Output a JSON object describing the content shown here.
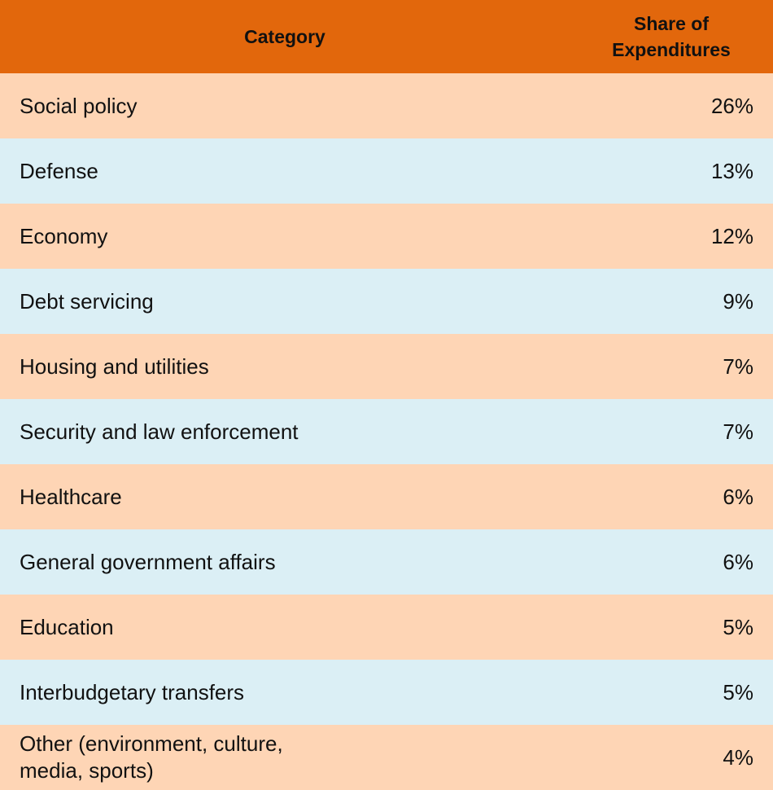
{
  "colors": {
    "header_bg": "#E2670C",
    "row_orange": "#FED5B5",
    "row_blue": "#DBEFF5",
    "text": "#111111"
  },
  "table": {
    "headers": {
      "category": "Category",
      "share": "Share of\nExpenditures"
    },
    "rows": [
      {
        "category": "Social policy",
        "share": "26%"
      },
      {
        "category": "Defense",
        "share": "13%"
      },
      {
        "category": "Economy",
        "share": "12%"
      },
      {
        "category": "Debt servicing",
        "share": "9%"
      },
      {
        "category": "Housing and utilities",
        "share": "7%"
      },
      {
        "category": "Security and law enforcement",
        "share": "7%"
      },
      {
        "category": "Healthcare",
        "share": "6%"
      },
      {
        "category": "General government affairs",
        "share": "6%"
      },
      {
        "category": "Education",
        "share": "5%"
      },
      {
        "category": "Interbudgetary transfers",
        "share": "5%"
      },
      {
        "category": "Other (environment, culture,\nmedia, sports)",
        "share": "4%"
      }
    ]
  }
}
